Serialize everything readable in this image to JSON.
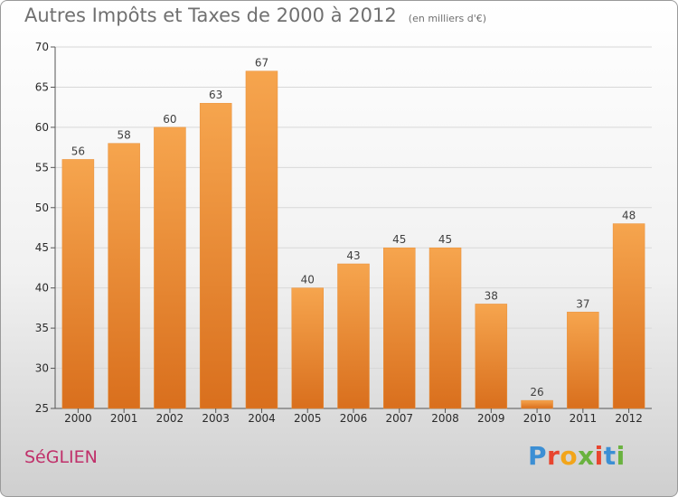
{
  "header": {
    "title": "Autres Impôts et Taxes de 2000 à 2012",
    "unit": "(en milliers d'€)"
  },
  "commune": "SéGLIEN",
  "brand": {
    "name": "Proxiti",
    "colors": [
      "#3c8fd4",
      "#e8452f",
      "#f2a51a",
      "#6ab23f",
      "#e8452f",
      "#3c8fd4",
      "#6ab23f"
    ]
  },
  "colors": {
    "bar_light": "#f6a54e",
    "bar_dark": "#d96f1d",
    "grid": "#d8d8d8"
  },
  "chart_data": {
    "type": "bar",
    "categories": [
      "2000",
      "2001",
      "2002",
      "2003",
      "2004",
      "2005",
      "2006",
      "2007",
      "2008",
      "2009",
      "2010",
      "2011",
      "2012"
    ],
    "values": [
      56,
      58,
      60,
      63,
      67,
      40,
      43,
      45,
      45,
      38,
      26,
      37,
      48
    ],
    "title": "Autres Impôts et Taxes de 2000 à 2012",
    "ylim": [
      25,
      70
    ],
    "yticks": [
      25,
      30,
      35,
      40,
      45,
      50,
      55,
      60,
      65,
      70
    ],
    "grid": true,
    "data_labels": true
  }
}
